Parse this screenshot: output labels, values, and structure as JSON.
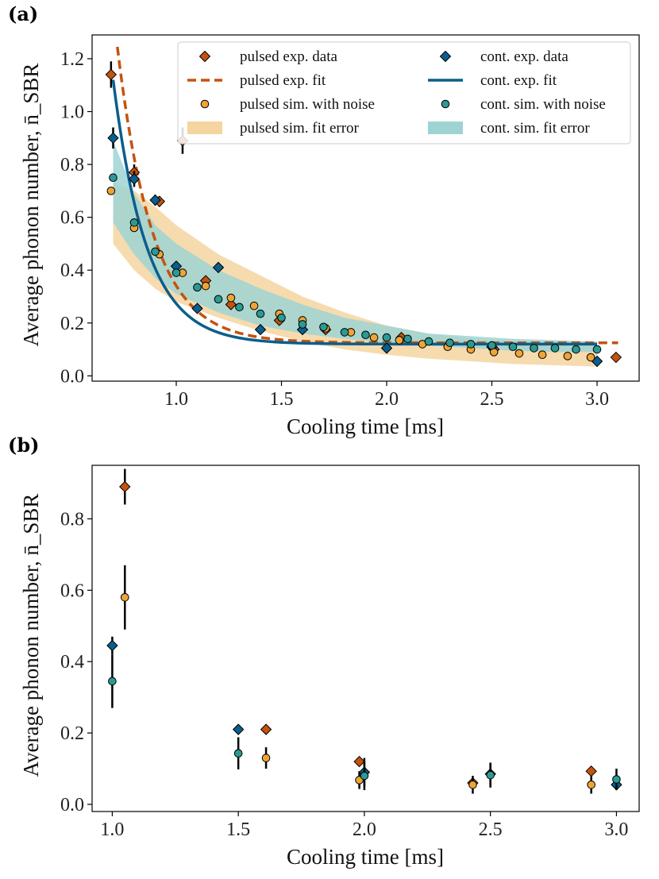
{
  "panels": [
    "(a)",
    "(b)"
  ],
  "colors": {
    "pulsed_exp": "#c4530f",
    "pulsed_sim": "#eea536",
    "pulsed_band": "#f4d5a0",
    "cont_exp": "#0b5e8c",
    "cont_sim": "#2a9a94",
    "cont_band": "#9fd3d3",
    "error_bar": "#000000"
  },
  "chart_data": [
    {
      "panel": "(a)",
      "type": "scatter",
      "xlabel": "Cooling time [ms]",
      "ylabel": "Average phonon number, n̄_SBR",
      "xlim": [
        0.6,
        3.2
      ],
      "ylim": [
        -0.02,
        1.29
      ],
      "xticks": [
        1.0,
        1.5,
        2.0,
        2.5,
        3.0
      ],
      "xtick_labels": [
        "1.0",
        "1.5",
        "2.0",
        "2.5",
        "3.0"
      ],
      "yticks": [
        0.0,
        0.2,
        0.4,
        0.6,
        0.8,
        1.0,
        1.2
      ],
      "ytick_labels": [
        "0.0",
        "0.2",
        "0.4",
        "0.6",
        "0.8",
        "1.0",
        "1.2"
      ],
      "legend": {
        "placement": "top-right",
        "entries": [
          {
            "label": "pulsed exp. data",
            "kind": "diamond",
            "color": "pulsed_exp"
          },
          {
            "label": "cont. exp. data",
            "kind": "diamond",
            "color": "cont_exp"
          },
          {
            "label": "pulsed exp. fit",
            "kind": "dash",
            "color": "pulsed_exp"
          },
          {
            "label": "cont. exp. fit",
            "kind": "line",
            "color": "cont_exp"
          },
          {
            "label": "pulsed sim. with noise",
            "kind": "circle",
            "color": "pulsed_sim"
          },
          {
            "label": "cont. sim. with noise",
            "kind": "circle",
            "color": "cont_sim"
          },
          {
            "label": "pulsed sim. fit error",
            "kind": "band",
            "color": "pulsed_band"
          },
          {
            "label": "cont. sim. fit error",
            "kind": "band",
            "color": "cont_band"
          }
        ]
      },
      "bands": [
        {
          "name": "pulsed sim. fit error",
          "color": "pulsed_band",
          "x": [
            0.7,
            0.8,
            0.9,
            1.0,
            1.2,
            1.4,
            1.6,
            1.8,
            2.0,
            2.2,
            2.4,
            2.6,
            2.8,
            3.0
          ],
          "lower": [
            0.5,
            0.4,
            0.33,
            0.28,
            0.22,
            0.17,
            0.13,
            0.1,
            0.08,
            0.065,
            0.055,
            0.045,
            0.04,
            0.035
          ],
          "upper": [
            0.73,
            0.7,
            0.64,
            0.57,
            0.46,
            0.38,
            0.3,
            0.24,
            0.19,
            0.16,
            0.14,
            0.13,
            0.125,
            0.12
          ]
        },
        {
          "name": "cont. sim. fit error",
          "color": "cont_band",
          "x": [
            0.7,
            0.8,
            0.9,
            1.0,
            1.2,
            1.4,
            1.6,
            1.8,
            2.0,
            2.2,
            2.4,
            2.6,
            2.8,
            3.0
          ],
          "lower": [
            0.58,
            0.46,
            0.37,
            0.31,
            0.24,
            0.19,
            0.16,
            0.14,
            0.125,
            0.115,
            0.105,
            0.095,
            0.09,
            0.09
          ],
          "upper": [
            0.89,
            0.69,
            0.57,
            0.5,
            0.4,
            0.33,
            0.27,
            0.22,
            0.19,
            0.16,
            0.15,
            0.14,
            0.135,
            0.13
          ]
        }
      ],
      "fits": [
        {
          "name": "pulsed exp. fit",
          "color": "pulsed_exp",
          "dashed": true,
          "x_range": [
            0.72,
            3.1
          ],
          "amplitude": 1.12,
          "tau": 0.17,
          "x0": 0.72,
          "offset": 0.125
        },
        {
          "name": "cont. exp. fit",
          "color": "cont_exp",
          "dashed": false,
          "x_range": [
            0.7,
            3.0
          ],
          "amplitude": 1.0,
          "tau": 0.16,
          "x0": 0.7,
          "offset": 0.12
        }
      ],
      "series": [
        {
          "name": "pulsed exp. data",
          "marker": "diamond",
          "color": "pulsed_exp",
          "points": [
            [
              0.69,
              1.14,
              0.05
            ],
            [
              0.8,
              0.77,
              0.03
            ],
            [
              0.92,
              0.66,
              0.02
            ],
            [
              1.03,
              0.89,
              0.05
            ],
            [
              1.14,
              0.36,
              0
            ],
            [
              1.26,
              0.27,
              0
            ],
            [
              1.49,
              0.21,
              0
            ],
            [
              1.71,
              0.175,
              0
            ],
            [
              2.07,
              0.145,
              0
            ],
            [
              2.51,
              0.1,
              0
            ],
            [
              3.09,
              0.07,
              0
            ]
          ]
        },
        {
          "name": "cont. exp. data",
          "marker": "diamond",
          "color": "cont_exp",
          "points": [
            [
              0.7,
              0.9,
              0.04
            ],
            [
              0.8,
              0.745,
              0.03
            ],
            [
              0.9,
              0.665,
              0.02
            ],
            [
              1.0,
              0.415,
              0
            ],
            [
              1.1,
              0.255,
              0
            ],
            [
              1.2,
              0.41,
              0
            ],
            [
              1.4,
              0.175,
              0
            ],
            [
              1.6,
              0.175,
              0
            ],
            [
              2.0,
              0.105,
              0
            ],
            [
              2.5,
              0.11,
              0
            ],
            [
              3.0,
              0.055,
              0
            ]
          ]
        },
        {
          "name": "pulsed sim. with noise",
          "marker": "circle",
          "color": "pulsed_sim",
          "points": [
            [
              0.69,
              0.7
            ],
            [
              0.8,
              0.56
            ],
            [
              0.92,
              0.46
            ],
            [
              1.03,
              0.39
            ],
            [
              1.14,
              0.34
            ],
            [
              1.26,
              0.295
            ],
            [
              1.37,
              0.265
            ],
            [
              1.49,
              0.235
            ],
            [
              1.6,
              0.21
            ],
            [
              1.71,
              0.18
            ],
            [
              1.83,
              0.165
            ],
            [
              1.94,
              0.145
            ],
            [
              2.06,
              0.135
            ],
            [
              2.17,
              0.12
            ],
            [
              2.29,
              0.11
            ],
            [
              2.4,
              0.1
            ],
            [
              2.51,
              0.09
            ],
            [
              2.63,
              0.085
            ],
            [
              2.74,
              0.08
            ],
            [
              2.86,
              0.075
            ],
            [
              2.97,
              0.07
            ]
          ]
        },
        {
          "name": "cont. sim. with noise",
          "marker": "circle",
          "color": "cont_sim",
          "points": [
            [
              0.7,
              0.75
            ],
            [
              0.8,
              0.58
            ],
            [
              0.9,
              0.47
            ],
            [
              1.0,
              0.39
            ],
            [
              1.1,
              0.335
            ],
            [
              1.2,
              0.29
            ],
            [
              1.3,
              0.26
            ],
            [
              1.4,
              0.235
            ],
            [
              1.5,
              0.22
            ],
            [
              1.6,
              0.195
            ],
            [
              1.7,
              0.185
            ],
            [
              1.8,
              0.165
            ],
            [
              1.9,
              0.155
            ],
            [
              2.0,
              0.145
            ],
            [
              2.1,
              0.14
            ],
            [
              2.2,
              0.13
            ],
            [
              2.3,
              0.125
            ],
            [
              2.4,
              0.12
            ],
            [
              2.5,
              0.115
            ],
            [
              2.6,
              0.11
            ],
            [
              2.7,
              0.105
            ],
            [
              2.8,
              0.105
            ],
            [
              2.9,
              0.1
            ],
            [
              3.0,
              0.1
            ]
          ]
        }
      ]
    },
    {
      "panel": "(b)",
      "type": "scatter",
      "xlabel": "Cooling time [ms]",
      "ylabel": "Average phonon number, n̄_SBR",
      "xlim": [
        0.92,
        3.09
      ],
      "ylim": [
        -0.02,
        0.95
      ],
      "xticks": [
        1.0,
        1.5,
        2.0,
        2.5,
        3.0
      ],
      "xtick_labels": [
        "1.0",
        "1.5",
        "2.0",
        "2.5",
        "3.0"
      ],
      "yticks": [
        0.0,
        0.2,
        0.4,
        0.6,
        0.8
      ],
      "ytick_labels": [
        "0.0",
        "0.2",
        "0.4",
        "0.6",
        "0.8"
      ],
      "series": [
        {
          "name": "pulsed exp. data",
          "marker": "diamond",
          "color": "pulsed_exp",
          "points": [
            [
              1.05,
              0.89,
              0.05
            ],
            [
              1.61,
              0.21,
              0
            ],
            [
              1.98,
              0.12,
              0
            ],
            [
              2.43,
              0.06,
              0
            ],
            [
              2.9,
              0.093,
              0
            ]
          ]
        },
        {
          "name": "pulsed sim. with noise",
          "marker": "circle",
          "color": "pulsed_sim",
          "points": [
            [
              1.05,
              0.58,
              0.09
            ],
            [
              1.61,
              0.13,
              0.03
            ],
            [
              1.98,
              0.068,
              0.025
            ],
            [
              2.43,
              0.055,
              0.025
            ],
            [
              2.9,
              0.055,
              0.025
            ]
          ]
        },
        {
          "name": "cont. exp. data",
          "marker": "diamond",
          "color": "cont_exp",
          "points": [
            [
              1.0,
              0.445,
              0.025
            ],
            [
              1.5,
              0.21,
              0
            ],
            [
              2.0,
              0.09,
              0.04
            ],
            [
              2.5,
              0.085,
              0.03
            ],
            [
              3.0,
              0.055,
              0
            ]
          ]
        },
        {
          "name": "cont. sim. with noise",
          "marker": "circle",
          "color": "cont_sim",
          "points": [
            [
              1.0,
              0.345,
              0.075
            ],
            [
              1.5,
              0.143,
              0.045
            ],
            [
              2.0,
              0.08,
              0.04
            ],
            [
              2.5,
              0.082,
              0.035
            ],
            [
              3.0,
              0.07,
              0.03
            ]
          ]
        }
      ]
    }
  ]
}
